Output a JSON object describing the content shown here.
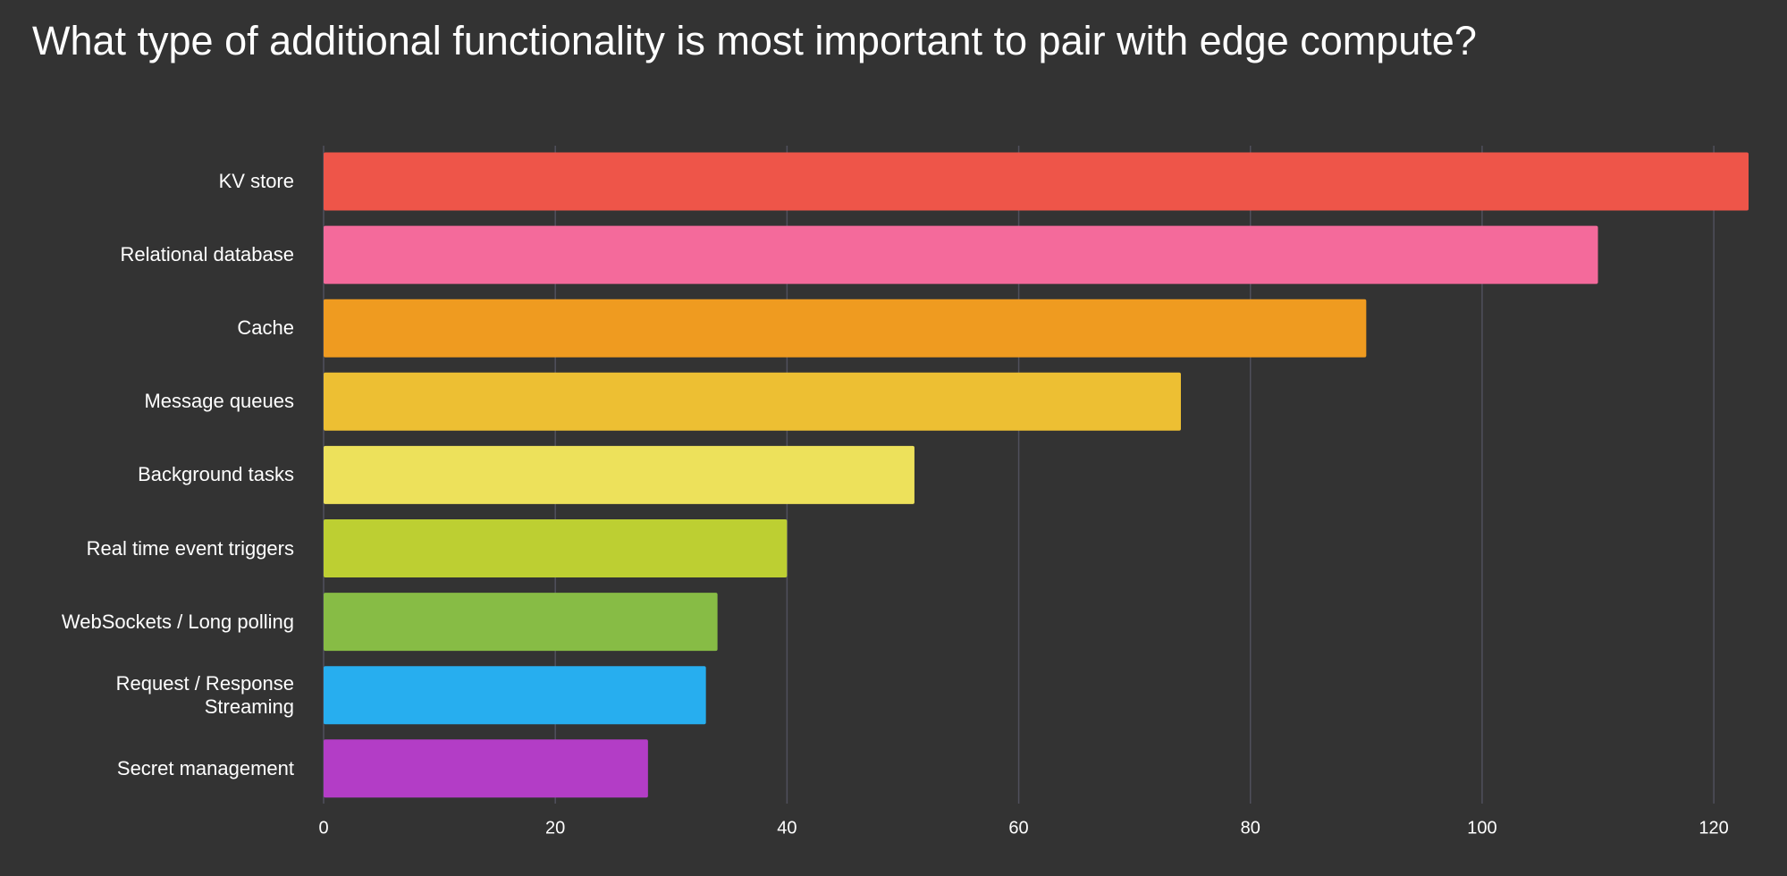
{
  "chart_data": {
    "type": "bar",
    "orientation": "horizontal",
    "title": "What type of additional functionality is most important to pair with edge compute?",
    "categories": [
      "KV store",
      "Relational database",
      "Cache",
      "Message queues",
      "Background tasks",
      "Real time event triggers",
      "WebSockets / Long polling",
      "Request / Response Streaming",
      "Secret management"
    ],
    "values": [
      123,
      110,
      90,
      74,
      51,
      40,
      34,
      33,
      28
    ],
    "colors": [
      "#ee5549",
      "#f46a9b",
      "#ef9b20",
      "#edbf33",
      "#ede15b",
      "#bdcf32",
      "#87bc45",
      "#27aeef",
      "#b33dc6"
    ],
    "xlim": [
      0,
      123
    ],
    "xticks": [
      0,
      20,
      40,
      60,
      80,
      100,
      120
    ],
    "grid": true
  }
}
